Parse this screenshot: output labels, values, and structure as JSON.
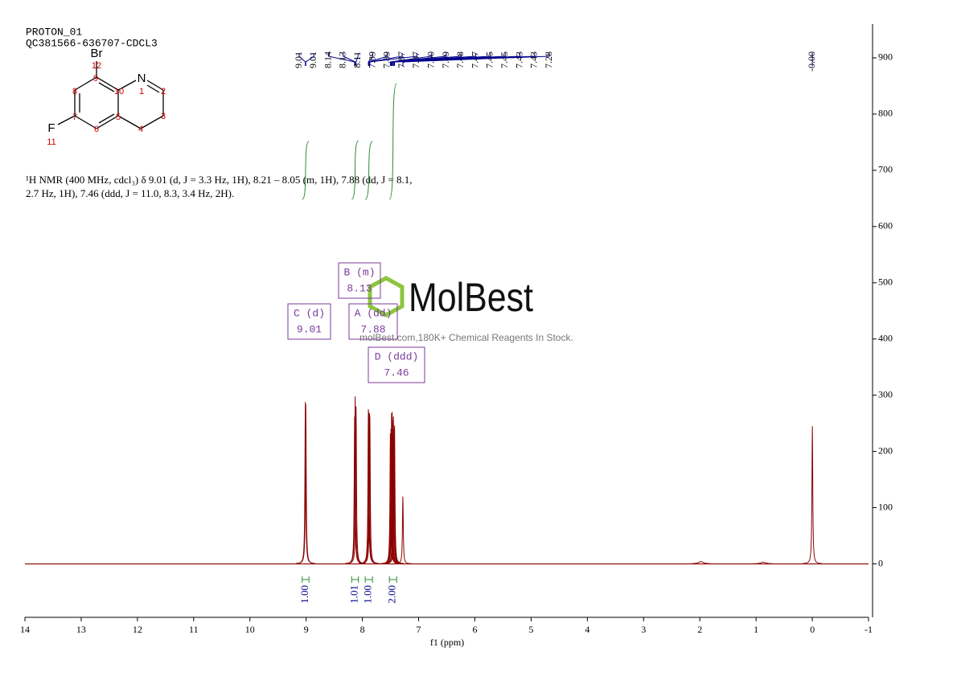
{
  "header": {
    "lines": [
      "PROTON_01",
      "QC381566-636707-CDCL3"
    ]
  },
  "structure": {
    "atoms": [
      "Br",
      "N",
      "F"
    ],
    "numbers": [
      "12",
      "9",
      "1",
      "2",
      "10",
      "8",
      "3",
      "7",
      "5",
      "6",
      "4",
      "11"
    ]
  },
  "description": [
    "¹H NMR (400 MHz, cdcl₃) δ 9.01 (d, J = 3.3 Hz, 1H), 8.21 – 8.05 (m, 1H), 7.88 (dd, J = 8.1,",
    "2.7 Hz, 1H), 7.46 (ddd, J = 11.0, 8.3, 3.4 Hz, 2H)."
  ],
  "watermark": {
    "brand": "MolBest",
    "tagline": "molBest.com,180K+ Chemical Reagents In Stock."
  },
  "chart_data": {
    "type": "nmr",
    "x_label": "f1 (ppm)",
    "xlim": [
      14,
      -1
    ],
    "xticks": [
      14,
      13,
      12,
      11,
      10,
      9,
      8,
      7,
      6,
      5,
      4,
      3,
      2,
      1,
      0,
      -1
    ],
    "ylim": [
      -95,
      960
    ],
    "yticks": [
      0,
      100,
      200,
      300,
      400,
      500,
      600,
      700,
      800,
      900
    ],
    "color": "#8b0000",
    "peaks": {
      "x": [
        9.014,
        9.006,
        8.138,
        8.128,
        8.112,
        7.893,
        7.887,
        7.873,
        7.867,
        7.502,
        7.491,
        7.481,
        7.47,
        7.454,
        7.448,
        7.434,
        7.428,
        7.28,
        -0.001
      ],
      "x_labels": [
        "9.01",
        "9.01",
        "8.14",
        "8.13",
        "8.11",
        "7.89",
        "7.89",
        "7.87",
        "7.87",
        "7.50",
        "7.49",
        "7.48",
        "7.47",
        "7.45",
        "7.45",
        "7.43",
        "7.43",
        "7.28",
        "-0.00"
      ],
      "values": [
        288,
        284,
        262,
        298,
        280,
        275,
        270,
        268,
        262,
        232,
        240,
        268,
        270,
        255,
        262,
        240,
        246,
        120,
        245
      ]
    },
    "minor_peaks": {
      "x": [
        1.98,
        0.87
      ],
      "values": [
        4,
        3
      ]
    },
    "integrals": [
      {
        "range": [
          9.07,
          8.95
        ],
        "value": 1,
        "label": "1.00"
      },
      {
        "range": [
          8.19,
          8.07
        ],
        "value": 1.01,
        "label": "1.01"
      },
      {
        "range": [
          7.95,
          7.82
        ],
        "value": 1,
        "label": "1.00"
      },
      {
        "range": [
          7.52,
          7.39
        ],
        "value": 2,
        "label": "2.00"
      }
    ],
    "multiplets": [
      {
        "name": "C (d)",
        "shift": 9.01
      },
      {
        "name": "B (m)",
        "shift": 8.13
      },
      {
        "name": "A (dd)",
        "shift": 7.88
      },
      {
        "name": "D (ddd)",
        "shift": 7.46
      }
    ]
  }
}
